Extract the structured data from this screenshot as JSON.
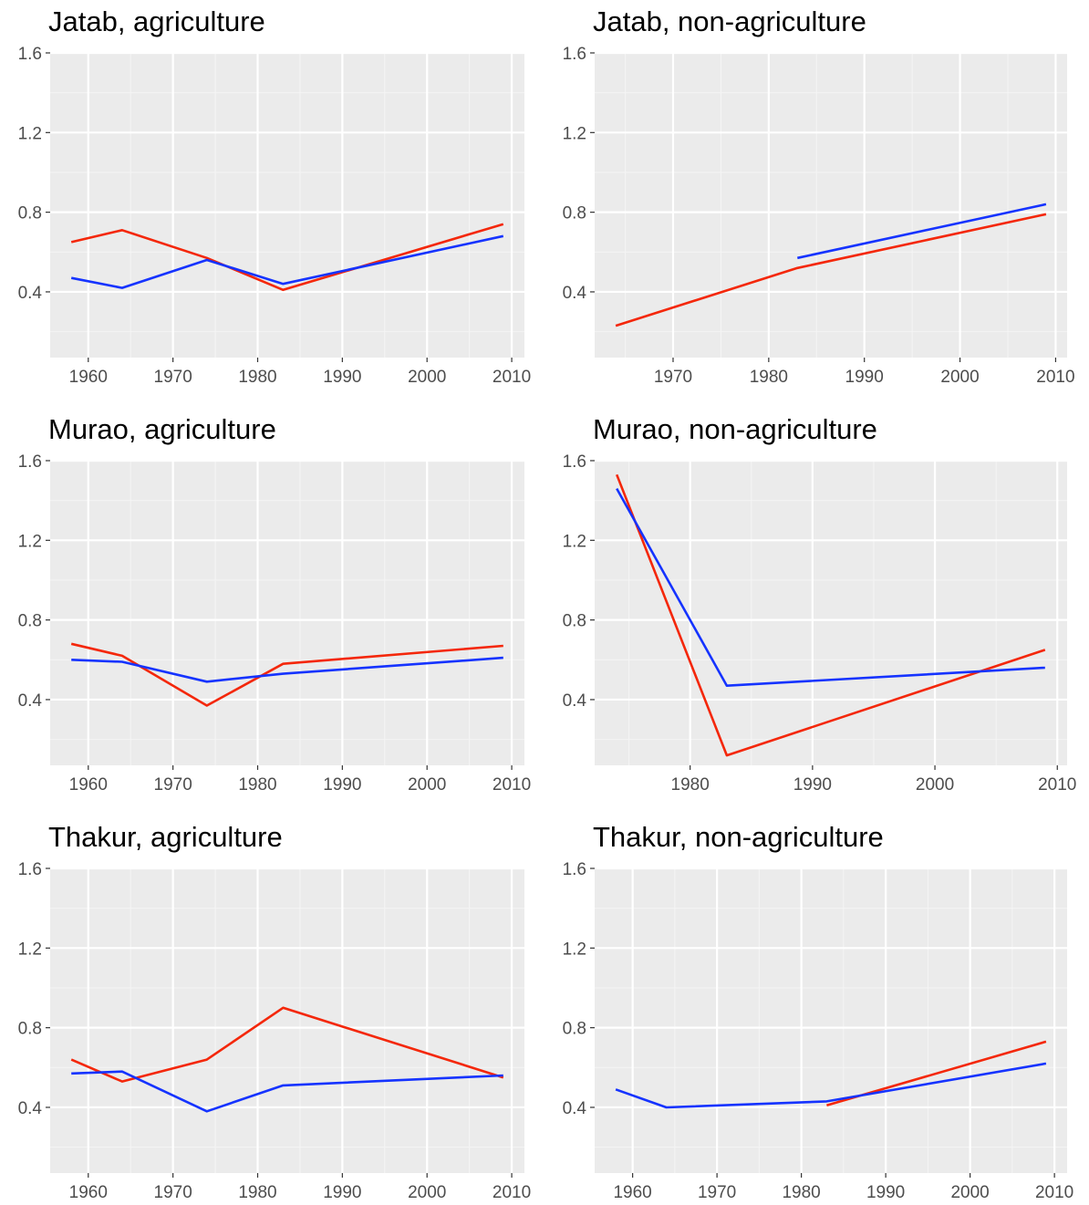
{
  "colors": {
    "red_series": "#f4270a",
    "blue_series": "#1533ff",
    "panel_bg": "#ebebeb"
  },
  "chart_data": [
    {
      "type": "line",
      "title": "Jatab, agriculture",
      "xlim": [
        1955.5,
        2011.5
      ],
      "ylim": [
        0.07,
        1.6
      ],
      "x_ticks": [
        1960,
        1970,
        1980,
        1990,
        2000,
        2010
      ],
      "y_ticks": [
        0.4,
        0.8,
        1.2,
        1.6
      ],
      "grid": true,
      "series": [
        {
          "color": "red",
          "x": [
            1958,
            1964,
            1974,
            1983,
            2009
          ],
          "y": [
            0.65,
            0.71,
            0.57,
            0.41,
            0.74
          ]
        },
        {
          "color": "blue",
          "x": [
            1958,
            1964,
            1974,
            1983,
            2009
          ],
          "y": [
            0.47,
            0.42,
            0.56,
            0.44,
            0.68
          ]
        }
      ]
    },
    {
      "type": "line",
      "title": "Jatab, non-agriculture",
      "xlim": [
        1961.8,
        2011.2
      ],
      "ylim": [
        0.07,
        1.6
      ],
      "x_ticks": [
        1970,
        1980,
        1990,
        2000,
        2010
      ],
      "y_ticks": [
        0.4,
        0.8,
        1.2,
        1.6
      ],
      "grid": true,
      "series": [
        {
          "color": "red",
          "x": [
            1964,
            1983,
            2009
          ],
          "y": [
            0.23,
            0.52,
            0.79
          ]
        },
        {
          "color": "blue",
          "x": [
            1983,
            2009
          ],
          "y": [
            0.57,
            0.84
          ]
        }
      ]
    },
    {
      "type": "line",
      "title": "Murao, agriculture",
      "xlim": [
        1955.5,
        2011.5
      ],
      "ylim": [
        0.07,
        1.6
      ],
      "x_ticks": [
        1960,
        1970,
        1980,
        1990,
        2000,
        2010
      ],
      "y_ticks": [
        0.4,
        0.8,
        1.2,
        1.6
      ],
      "grid": true,
      "series": [
        {
          "color": "red",
          "x": [
            1958,
            1964,
            1974,
            1983,
            2009
          ],
          "y": [
            0.68,
            0.62,
            0.37,
            0.58,
            0.67
          ]
        },
        {
          "color": "blue",
          "x": [
            1958,
            1964,
            1974,
            1983,
            2009
          ],
          "y": [
            0.6,
            0.59,
            0.49,
            0.53,
            0.61
          ]
        }
      ]
    },
    {
      "type": "line",
      "title": "Murao, non-agriculture",
      "xlim": [
        1972.2,
        2010.8
      ],
      "ylim": [
        0.07,
        1.6
      ],
      "x_ticks": [
        1980,
        1990,
        2000,
        2010
      ],
      "y_ticks": [
        0.4,
        0.8,
        1.2,
        1.6
      ],
      "grid": true,
      "series": [
        {
          "color": "red",
          "x": [
            1974,
            1983,
            2009
          ],
          "y": [
            1.53,
            0.12,
            0.65
          ]
        },
        {
          "color": "blue",
          "x": [
            1974,
            1983,
            2009
          ],
          "y": [
            1.46,
            0.47,
            0.56
          ]
        }
      ]
    },
    {
      "type": "line",
      "title": "Thakur, agriculture",
      "xlim": [
        1955.5,
        2011.5
      ],
      "ylim": [
        0.07,
        1.6
      ],
      "x_ticks": [
        1960,
        1970,
        1980,
        1990,
        2000,
        2010
      ],
      "y_ticks": [
        0.4,
        0.8,
        1.2,
        1.6
      ],
      "grid": true,
      "series": [
        {
          "color": "red",
          "x": [
            1958,
            1964,
            1974,
            1983,
            2009
          ],
          "y": [
            0.64,
            0.53,
            0.64,
            0.9,
            0.55
          ]
        },
        {
          "color": "blue",
          "x": [
            1958,
            1964,
            1974,
            1983,
            2009
          ],
          "y": [
            0.57,
            0.58,
            0.38,
            0.51,
            0.56
          ]
        }
      ]
    },
    {
      "type": "line",
      "title": "Thakur, non-agriculture",
      "xlim": [
        1955.5,
        2011.5
      ],
      "ylim": [
        0.07,
        1.6
      ],
      "x_ticks": [
        1960,
        1970,
        1980,
        1990,
        2000,
        2010
      ],
      "y_ticks": [
        0.4,
        0.8,
        1.2,
        1.6
      ],
      "grid": true,
      "series": [
        {
          "color": "red",
          "x": [
            1983,
            2009
          ],
          "y": [
            0.41,
            0.73
          ]
        },
        {
          "color": "blue",
          "x": [
            1958,
            1964,
            1983,
            2009
          ],
          "y": [
            0.49,
            0.4,
            0.43,
            0.62
          ]
        }
      ]
    }
  ]
}
